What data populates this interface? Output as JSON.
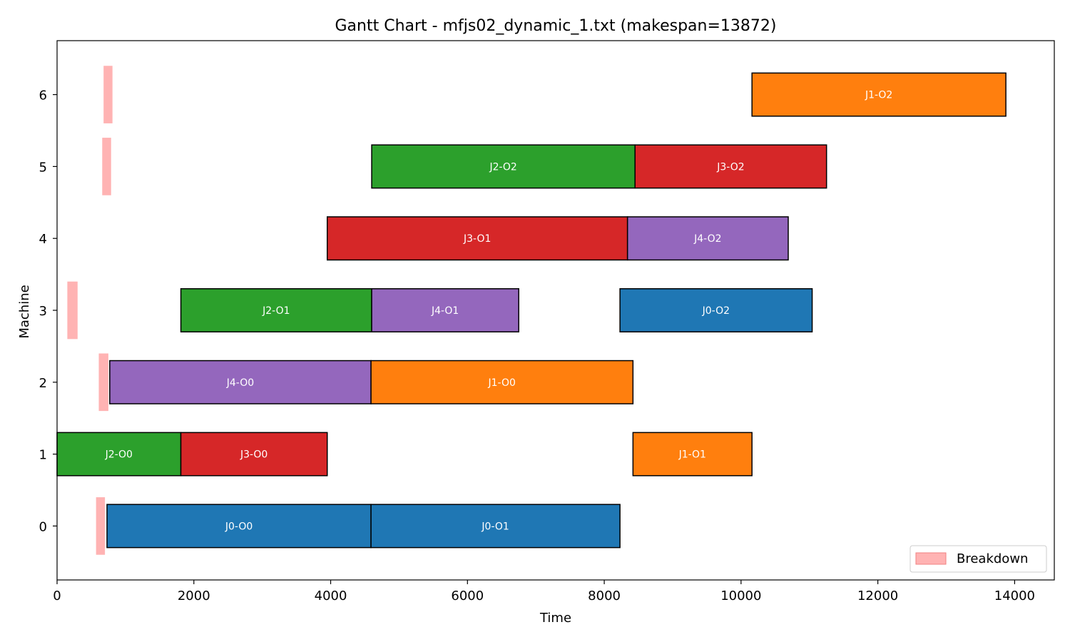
{
  "chart_data": {
    "type": "gantt",
    "title": "Gantt Chart - mfjs02_dynamic_1.txt (makespan=13872)",
    "xlabel": "Time",
    "ylabel": "Machine",
    "xlim": [
      0,
      14580
    ],
    "ylim": [
      -0.75,
      6.75
    ],
    "x_ticks": [
      "0",
      "2000",
      "4000",
      "6000",
      "8000",
      "10000",
      "12000",
      "14000"
    ],
    "x_tick_values": [
      0,
      2000,
      4000,
      6000,
      8000,
      10000,
      12000,
      14000
    ],
    "y_ticks": [
      "0",
      "1",
      "2",
      "3",
      "4",
      "5",
      "6"
    ],
    "y_tick_values": [
      0,
      1,
      2,
      3,
      4,
      5,
      6
    ],
    "job_colors": {
      "J0": "#1f77b4",
      "J1": "#ff7f0e",
      "J2": "#2ca02c",
      "J3": "#d62728",
      "J4": "#9467bd"
    },
    "breakdown_color": "#ffb3b3",
    "operations": [
      {
        "label": "J0-O0",
        "job": "J0",
        "machine": 0,
        "start": 730,
        "end": 4590
      },
      {
        "label": "J0-O1",
        "job": "J0",
        "machine": 0,
        "start": 4590,
        "end": 8230
      },
      {
        "label": "J2-O0",
        "job": "J2",
        "machine": 1,
        "start": 0,
        "end": 1810
      },
      {
        "label": "J3-O0",
        "job": "J3",
        "machine": 1,
        "start": 1810,
        "end": 3950
      },
      {
        "label": "J1-O1",
        "job": "J1",
        "machine": 1,
        "start": 8420,
        "end": 10160
      },
      {
        "label": "J4-O0",
        "job": "J4",
        "machine": 2,
        "start": 770,
        "end": 4590
      },
      {
        "label": "J1-O0",
        "job": "J1",
        "machine": 2,
        "start": 4590,
        "end": 8420
      },
      {
        "label": "J2-O1",
        "job": "J2",
        "machine": 3,
        "start": 1810,
        "end": 4600
      },
      {
        "label": "J4-O1",
        "job": "J4",
        "machine": 3,
        "start": 4600,
        "end": 6750
      },
      {
        "label": "J0-O2",
        "job": "J0",
        "machine": 3,
        "start": 8230,
        "end": 11040
      },
      {
        "label": "J3-O1",
        "job": "J3",
        "machine": 4,
        "start": 3950,
        "end": 8340
      },
      {
        "label": "J4-O2",
        "job": "J4",
        "machine": 4,
        "start": 8340,
        "end": 10690
      },
      {
        "label": "J2-O2",
        "job": "J2",
        "machine": 5,
        "start": 4600,
        "end": 8450
      },
      {
        "label": "J3-O2",
        "job": "J3",
        "machine": 5,
        "start": 8450,
        "end": 11250
      },
      {
        "label": "J1-O2",
        "job": "J1",
        "machine": 6,
        "start": 10160,
        "end": 13872
      }
    ],
    "breakdowns": [
      {
        "machine": 0,
        "start": 570,
        "end": 700
      },
      {
        "machine": 2,
        "start": 610,
        "end": 750
      },
      {
        "machine": 3,
        "start": 150,
        "end": 300
      },
      {
        "machine": 5,
        "start": 660,
        "end": 790
      },
      {
        "machine": 6,
        "start": 680,
        "end": 810
      }
    ],
    "legend": {
      "label": "Breakdown",
      "position": "lower-right"
    }
  }
}
